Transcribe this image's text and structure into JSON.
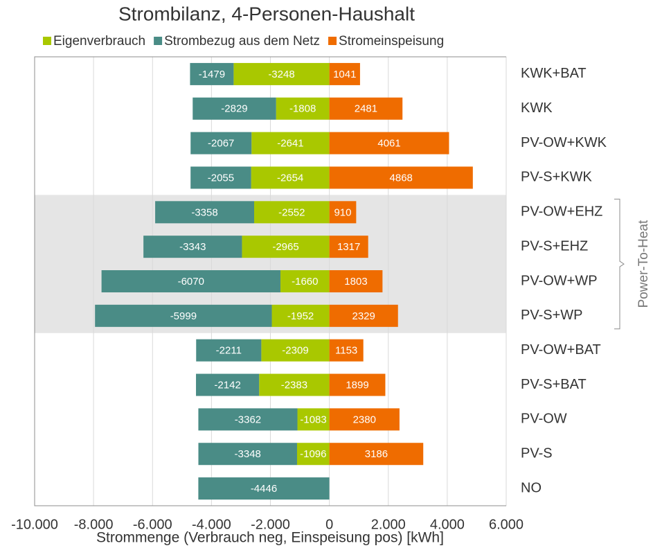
{
  "chart_data": {
    "type": "diverging_stacked_barh",
    "title": "Strombilanz, 4-Personen-Haushalt",
    "x_label": "Strommenge (Verbrauch neg, Einspeisung pos) [kWh]",
    "categories": [
      "KWK+BAT",
      "KWK",
      "PV-OW+KWK",
      "PV-S+KWK",
      "PV-OW+EHZ",
      "PV-S+EHZ",
      "PV-OW+WP",
      "PV-S+WP",
      "PV-OW+BAT",
      "PV-S+BAT",
      "PV-OW",
      "PV-S",
      "NO"
    ],
    "series": [
      {
        "name": "Eigenverbrauch",
        "color": "#a9c800",
        "values": [
          -3248,
          -1808,
          -2641,
          -2654,
          -2552,
          -2965,
          -1660,
          -1952,
          -2309,
          -2383,
          -1083,
          -1096,
          null
        ]
      },
      {
        "name": "Strombezug aus dem Netz",
        "color": "#4a8c86",
        "values": [
          -1479,
          -2829,
          -2067,
          -2055,
          -3358,
          -3343,
          -6070,
          -5999,
          -2211,
          -2142,
          -3362,
          -3348,
          -4446
        ]
      },
      {
        "name": "Stromeinspeisung",
        "color": "#ef6c00",
        "values": [
          1041,
          2481,
          4061,
          4868,
          910,
          1317,
          1803,
          2329,
          1153,
          1899,
          2380,
          3186,
          null
        ]
      }
    ],
    "xlim": [
      -10000,
      6000
    ],
    "xticks": [
      {
        "value": -10000,
        "label": "-10.000"
      },
      {
        "value": -8000,
        "label": "-8.000"
      },
      {
        "value": -6000,
        "label": "-6.000"
      },
      {
        "value": -4000,
        "label": "-4.000"
      },
      {
        "value": -2000,
        "label": "-2.000"
      },
      0,
      {
        "value": 2000,
        "label": "2.000"
      },
      {
        "value": 4000,
        "label": "4.000"
      },
      {
        "value": 6000,
        "label": "6.000"
      }
    ],
    "grid": true,
    "legend": "top",
    "highlight": {
      "from": 4,
      "to": 7,
      "label": "Power-To-Heat",
      "color": "#e5e5e5"
    }
  }
}
